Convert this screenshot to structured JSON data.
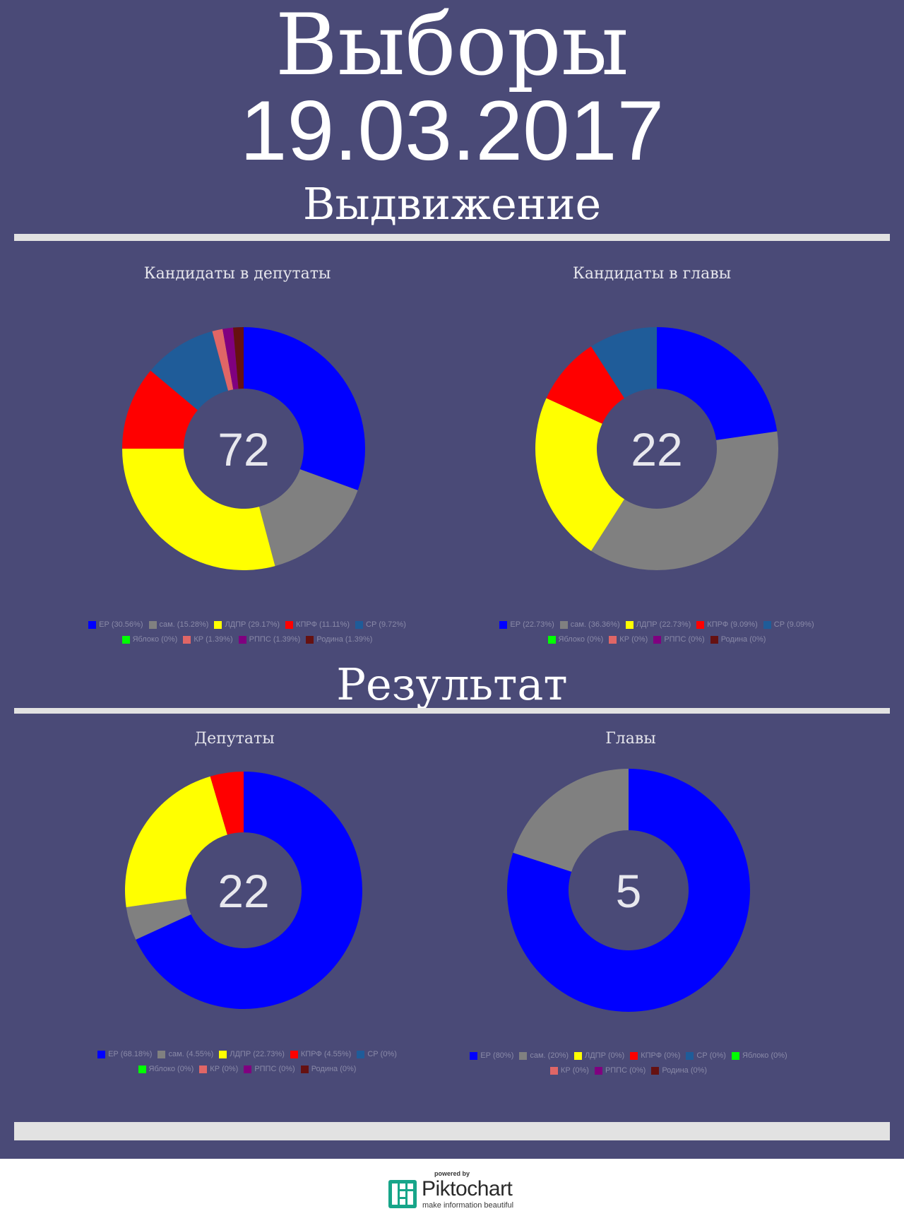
{
  "header": {
    "title_line1": "Выборы",
    "title_line2": "19.03.2017"
  },
  "sections": {
    "nomination": "Выдвижение",
    "result": "Результат"
  },
  "colors": {
    "background": "#4a4a77",
    "rule": "#e2e2e2"
  },
  "chart_data": [
    {
      "type": "pie",
      "title": "Кандидаты в депутаты",
      "center_label": "72",
      "legend_rows": [
        [
          0,
          1,
          2,
          3,
          4
        ],
        [
          5,
          6,
          7,
          8
        ]
      ],
      "slices": [
        {
          "name": "ЕР",
          "value": 30.56,
          "color": "#0000ff",
          "legend": "ЕР (30.56%)"
        },
        {
          "name": "сам.",
          "value": 15.28,
          "color": "#808080",
          "legend": "сам. (15.28%)"
        },
        {
          "name": "ЛДПР",
          "value": 29.17,
          "color": "#ffff00",
          "legend": "ЛДПР (29.17%)"
        },
        {
          "name": "КПРФ",
          "value": 11.11,
          "color": "#ff0000",
          "legend": "КПРФ (11.11%)"
        },
        {
          "name": "СР",
          "value": 9.72,
          "color": "#1f5c99",
          "legend": "СР (9.72%)"
        },
        {
          "name": "Яблоко",
          "value": 0,
          "color": "#00ff00",
          "legend": "Яблоко (0%)"
        },
        {
          "name": "КР",
          "value": 1.39,
          "color": "#e06666",
          "legend": "КР (1.39%)"
        },
        {
          "name": "РППС",
          "value": 1.39,
          "color": "#800080",
          "legend": "РППС (1.39%)"
        },
        {
          "name": "Родина",
          "value": 1.39,
          "color": "#661111",
          "legend": "Родина (1.39%)"
        }
      ]
    },
    {
      "type": "pie",
      "title": "Кандидаты в главы",
      "center_label": "22",
      "legend_rows": [
        [
          0,
          1,
          2,
          3,
          4
        ],
        [
          5,
          6,
          7,
          8
        ]
      ],
      "slices": [
        {
          "name": "ЕР",
          "value": 22.73,
          "color": "#0000ff",
          "legend": "ЕР (22.73%)"
        },
        {
          "name": "сам.",
          "value": 36.36,
          "color": "#808080",
          "legend": "сам. (36.36%)"
        },
        {
          "name": "ЛДПР",
          "value": 22.73,
          "color": "#ffff00",
          "legend": "ЛДПР (22.73%)"
        },
        {
          "name": "КПРФ",
          "value": 9.09,
          "color": "#ff0000",
          "legend": "КПРФ (9.09%)"
        },
        {
          "name": "СР",
          "value": 9.09,
          "color": "#1f5c99",
          "legend": "СР (9.09%)"
        },
        {
          "name": "Яблоко",
          "value": 0,
          "color": "#00ff00",
          "legend": "Яблоко (0%)"
        },
        {
          "name": "КР",
          "value": 0,
          "color": "#e06666",
          "legend": "КР (0%)"
        },
        {
          "name": "РППС",
          "value": 0,
          "color": "#800080",
          "legend": "РППС (0%)"
        },
        {
          "name": "Родина",
          "value": 0,
          "color": "#661111",
          "legend": "Родина (0%)"
        }
      ]
    },
    {
      "type": "pie",
      "title": "Депутаты",
      "center_label": "22",
      "legend_rows": [
        [
          0,
          1,
          2,
          3,
          4
        ],
        [
          5,
          6,
          7,
          8
        ]
      ],
      "slices": [
        {
          "name": "ЕР",
          "value": 68.18,
          "color": "#0000ff",
          "legend": "ЕР (68.18%)"
        },
        {
          "name": "сам.",
          "value": 4.55,
          "color": "#808080",
          "legend": "сам. (4.55%)"
        },
        {
          "name": "ЛДПР",
          "value": 22.73,
          "color": "#ffff00",
          "legend": "ЛДПР (22.73%)"
        },
        {
          "name": "КПРФ",
          "value": 4.55,
          "color": "#ff0000",
          "legend": "КПРФ (4.55%)"
        },
        {
          "name": "СР",
          "value": 0,
          "color": "#1f5c99",
          "legend": "СР (0%)"
        },
        {
          "name": "Яблоко",
          "value": 0,
          "color": "#00ff00",
          "legend": "Яблоко (0%)"
        },
        {
          "name": "КР",
          "value": 0,
          "color": "#e06666",
          "legend": "КР (0%)"
        },
        {
          "name": "РППС",
          "value": 0,
          "color": "#800080",
          "legend": "РППС (0%)"
        },
        {
          "name": "Родина",
          "value": 0,
          "color": "#661111",
          "legend": "Родина (0%)"
        }
      ]
    },
    {
      "type": "pie",
      "title": "Главы",
      "center_label": "5",
      "legend_rows": [
        [
          0,
          1,
          2,
          3,
          4,
          5
        ],
        [
          6,
          7,
          8
        ]
      ],
      "slices": [
        {
          "name": "ЕР",
          "value": 80,
          "color": "#0000ff",
          "legend": "ЕР (80%)"
        },
        {
          "name": "сам.",
          "value": 20,
          "color": "#808080",
          "legend": "сам. (20%)"
        },
        {
          "name": "ЛДПР",
          "value": 0,
          "color": "#ffff00",
          "legend": "ЛДПР (0%)"
        },
        {
          "name": "КПРФ",
          "value": 0,
          "color": "#ff0000",
          "legend": "КПРФ (0%)"
        },
        {
          "name": "СР",
          "value": 0,
          "color": "#1f5c99",
          "legend": "СР (0%)"
        },
        {
          "name": "Яблоко",
          "value": 0,
          "color": "#00ff00",
          "legend": "Яблоко (0%)"
        },
        {
          "name": "КР",
          "value": 0,
          "color": "#e06666",
          "legend": "КР (0%)"
        },
        {
          "name": "РППС",
          "value": 0,
          "color": "#800080",
          "legend": "РППС (0%)"
        },
        {
          "name": "Родина",
          "value": 0,
          "color": "#661111",
          "legend": "Родина (0%)"
        }
      ]
    }
  ],
  "footer": {
    "powered_by": "powered by",
    "brand": "Piktochart",
    "tagline": "make information beautiful",
    "logo_icon": "piktochart-logo-icon"
  }
}
